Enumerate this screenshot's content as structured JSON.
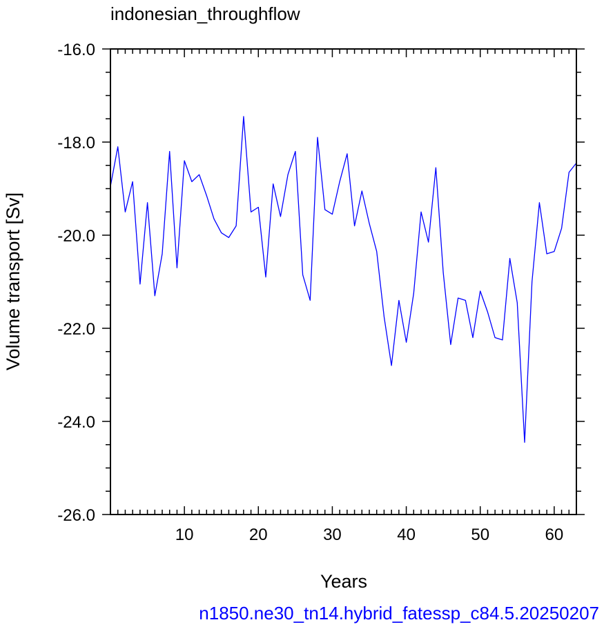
{
  "chart_data": {
    "type": "line",
    "title": "indonesian_throughflow",
    "xlabel": "Years",
    "ylabel": "Volume transport [Sv]",
    "footer": "n1850.ne30_tn14.hybrid_fatessp_c84.5.20250207",
    "xlim": [
      0,
      63
    ],
    "ylim": [
      -26,
      -16
    ],
    "xticks": [
      10,
      20,
      30,
      40,
      50,
      60
    ],
    "xtick_labels": [
      "10",
      "20",
      "30",
      "40",
      "50",
      "60"
    ],
    "yticks": [
      -26,
      -24,
      -22,
      -20,
      -18,
      -16
    ],
    "ytick_labels": [
      "-26.0",
      "-24.0",
      "-22.0",
      "-20.0",
      "-18.0",
      "-16.0"
    ],
    "grid": false,
    "line_color": "#0000ff",
    "series": [
      {
        "x": [
          0,
          1,
          2,
          3,
          4,
          5,
          6,
          7,
          8,
          9,
          10,
          11,
          12,
          13,
          14,
          15,
          16,
          17,
          18,
          19,
          20,
          21,
          22,
          23,
          24,
          25,
          26,
          27,
          28,
          29,
          30,
          31,
          32,
          33,
          34,
          35,
          36,
          37,
          38,
          39,
          40,
          41,
          42,
          43,
          44,
          45,
          46,
          47,
          48,
          49,
          50,
          51,
          52,
          53,
          54,
          55,
          56,
          57,
          58,
          59,
          60,
          61,
          62,
          63
        ],
        "values": [
          -18.95,
          -18.1,
          -19.5,
          -18.85,
          -21.05,
          -19.3,
          -21.3,
          -20.4,
          -18.2,
          -20.7,
          -18.4,
          -18.85,
          -18.7,
          -19.15,
          -19.65,
          -19.95,
          -20.05,
          -19.8,
          -17.45,
          -19.5,
          -19.4,
          -20.9,
          -18.9,
          -19.6,
          -18.7,
          -18.2,
          -20.85,
          -21.4,
          -17.9,
          -19.45,
          -19.55,
          -18.85,
          -18.25,
          -19.8,
          -19.05,
          -19.75,
          -20.35,
          -21.75,
          -22.8,
          -21.4,
          -22.3,
          -21.25,
          -19.5,
          -20.15,
          -18.55,
          -20.8,
          -22.35,
          -21.35,
          -21.4,
          -22.2,
          -21.2,
          -21.65,
          -22.2,
          -22.25,
          -20.5,
          -21.45,
          -24.45,
          -21.0,
          -19.3,
          -20.4,
          -20.35,
          -19.85,
          -18.65,
          -18.45
        ]
      }
    ]
  }
}
